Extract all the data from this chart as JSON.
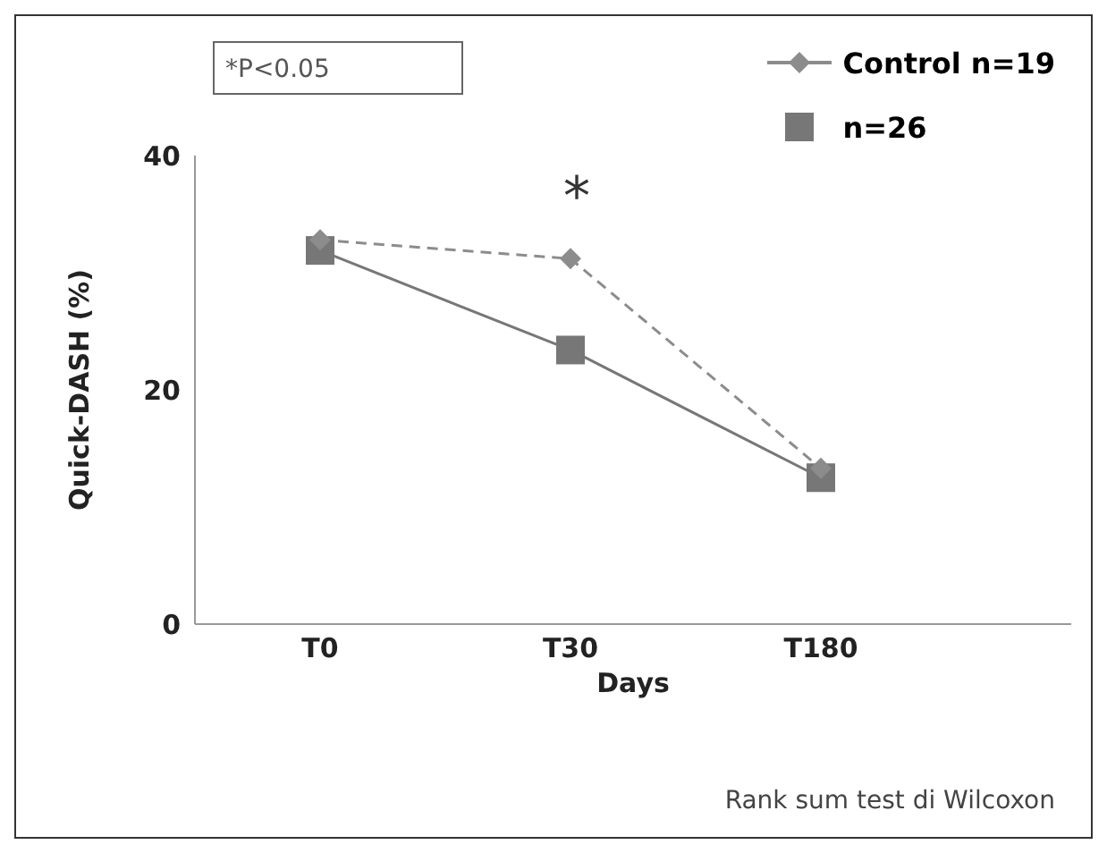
{
  "chart_data": {
    "type": "line",
    "xlabel": "Days",
    "ylabel": "Quick-DASH (%)",
    "categories": [
      "T0",
      "T30",
      "T180"
    ],
    "series": [
      {
        "name": "Control n=19",
        "color": "#8c8c8c",
        "values": [
          32.8,
          31.2,
          13.3
        ],
        "marker": "diamond",
        "line_style": "dashed"
      },
      {
        "name": "n=26",
        "color": "#777777",
        "values": [
          31.9,
          23.4,
          12.5
        ],
        "marker": "square",
        "line_style": "solid"
      }
    ],
    "ylim": [
      0,
      40
    ],
    "yticks": [
      0,
      20,
      40
    ],
    "grid": false,
    "legend": "top right",
    "annotations": [
      "*P<0.05",
      "*",
      "Rank sum test di Wilcoxon"
    ]
  }
}
